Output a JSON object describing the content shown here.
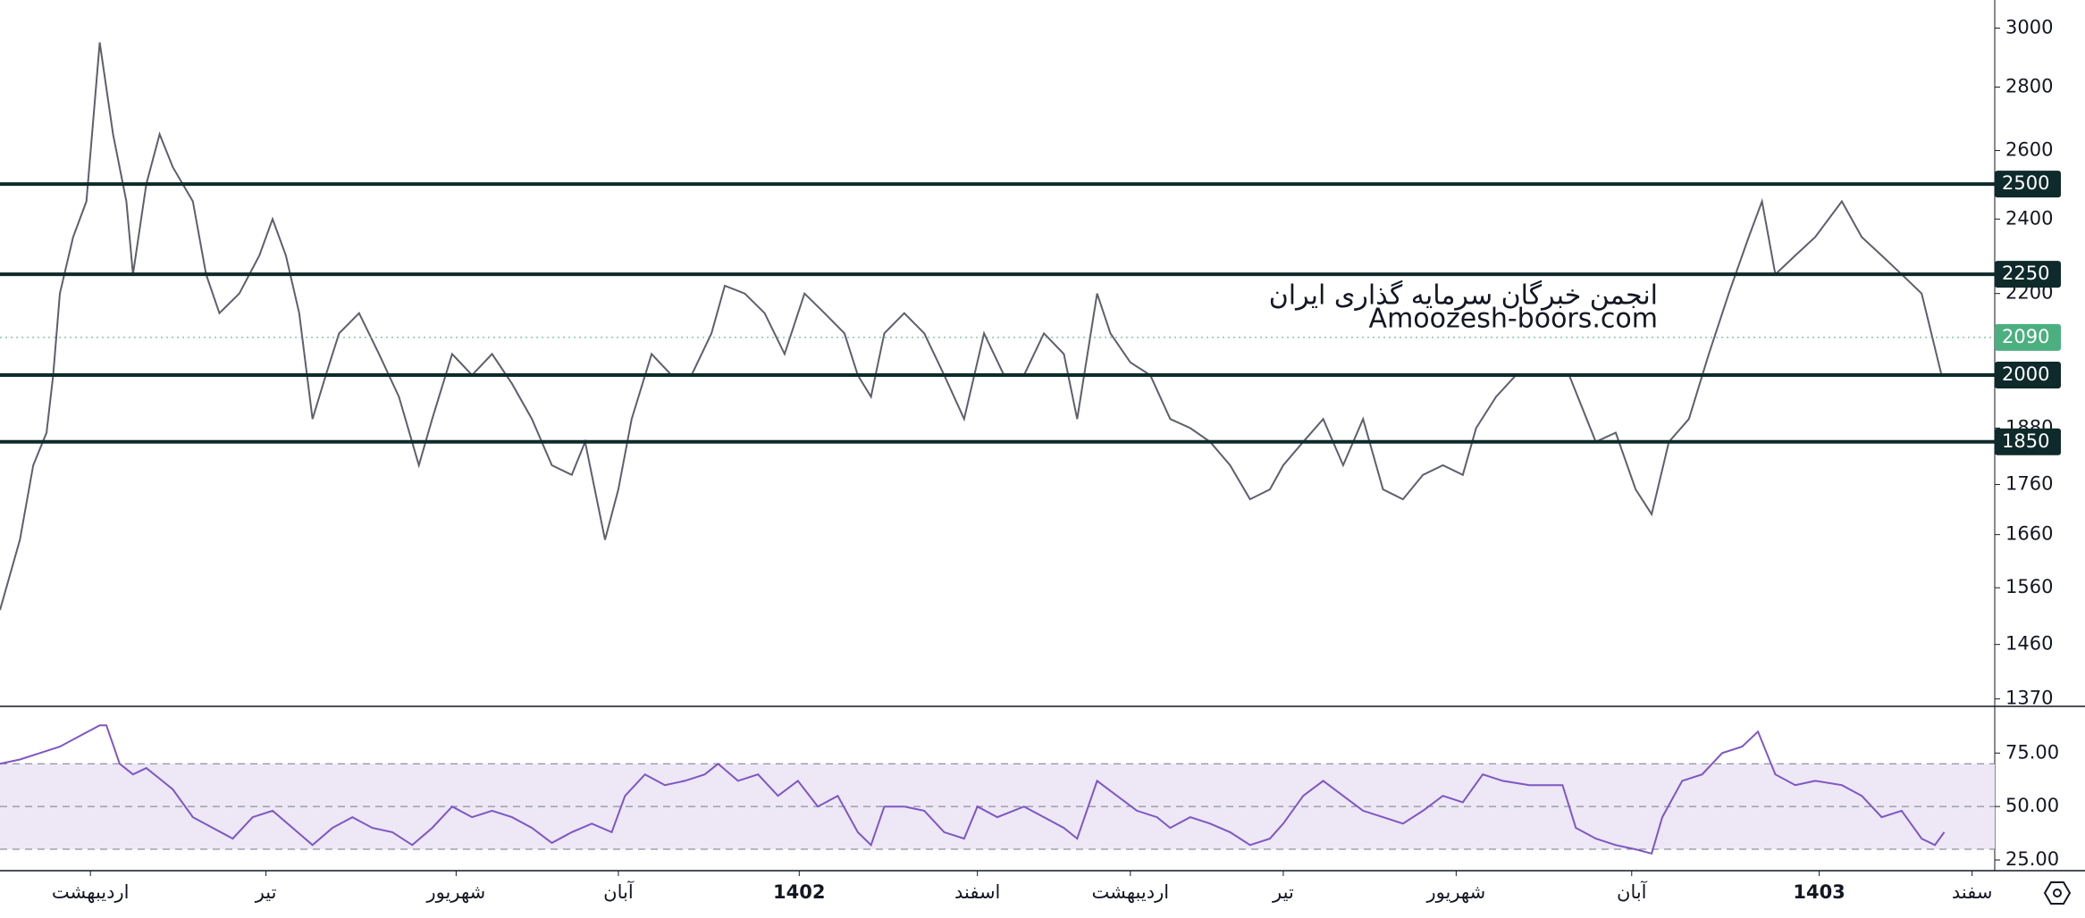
{
  "chart_data": [
    {
      "type": "line",
      "log_scale": true,
      "color": "#5d606b",
      "xlim": [
        0,
        150
      ],
      "ylim": [
        1361,
        3100
      ],
      "yticks": [
        1370,
        1460,
        1560,
        1660,
        1760,
        1880,
        2000,
        2200,
        2400,
        2600,
        2800,
        3000
      ],
      "xticks": [
        {
          "value": 6.8,
          "label": "اردیبهشت"
        },
        {
          "value": 20,
          "label": "تیر"
        },
        {
          "value": 34.3,
          "label": "شهریور"
        },
        {
          "value": 46.5,
          "label": "آبان"
        },
        {
          "value": 60.1,
          "label": "1402"
        },
        {
          "value": 73.5,
          "label": "اسفند"
        },
        {
          "value": 85,
          "label": "اردیبهشت"
        },
        {
          "value": 96.5,
          "label": "تیر"
        },
        {
          "value": 109.5,
          "label": "شهریور"
        },
        {
          "value": 122.7,
          "label": "آبان"
        },
        {
          "value": 136.8,
          "label": "1403"
        },
        {
          "value": 148.3,
          "label": "سفند"
        }
      ],
      "levels": [
        2500,
        2250,
        2000,
        1850
      ],
      "level_color": "#0f2a2a",
      "last_price": 2090,
      "last_price_color": "#4caf80",
      "annotations": [
        "انجمن خبرگان سرمایه گذاری ایران",
        "Amoozesh-boors.com"
      ],
      "x": [
        0,
        1.5,
        2.5,
        3.5,
        4,
        4.5,
        5.5,
        6.5,
        7.5,
        8.5,
        9.5,
        10,
        11,
        12,
        13,
        14.5,
        15.5,
        16.5,
        18,
        19.5,
        20.5,
        21.5,
        22.5,
        23.5,
        24.5,
        25.5,
        27,
        28.5,
        30,
        31.5,
        32.5,
        34,
        35.5,
        37,
        38.5,
        40,
        41.5,
        43,
        44,
        45.5,
        46.5,
        47.5,
        49,
        50.5,
        52,
        53.5,
        54.5,
        56,
        57.5,
        59,
        60.5,
        62,
        63.5,
        64.5,
        65.5,
        66.5,
        68,
        69.5,
        71,
        72.5,
        74,
        75.5,
        77,
        78.5,
        80,
        81,
        82.5,
        83.5,
        85,
        86.5,
        88,
        89.5,
        91,
        92.5,
        94,
        95.5,
        96.5,
        98,
        99.5,
        101,
        102.5,
        104,
        105.5,
        107,
        108.5,
        110,
        111,
        112.5,
        114,
        116,
        118,
        120,
        121.5,
        123,
        124.2,
        125.5,
        127,
        128.5,
        130,
        131.5,
        132.5,
        133.5,
        135,
        136.5,
        138.5,
        140,
        141.5,
        143,
        144.5,
        146
      ],
      "values": [
        1520,
        1650,
        1800,
        1870,
        2000,
        2200,
        2350,
        2450,
        2950,
        2650,
        2450,
        2250,
        2500,
        2650,
        2550,
        2450,
        2250,
        2150,
        2200,
        2300,
        2400,
        2300,
        2150,
        1900,
        2000,
        2100,
        2150,
        2050,
        1950,
        1800,
        1900,
        2050,
        2000,
        2050,
        1980,
        1900,
        1800,
        1780,
        1850,
        1650,
        1750,
        1900,
        2050,
        2000,
        2000,
        2100,
        2220,
        2200,
        2150,
        2050,
        2200,
        2150,
        2100,
        2000,
        1950,
        2100,
        2150,
        2100,
        2000,
        1900,
        2100,
        2000,
        2000,
        2100,
        2050,
        1900,
        2200,
        2100,
        2030,
        2000,
        1900,
        1880,
        1850,
        1800,
        1730,
        1750,
        1800,
        1850,
        1900,
        1800,
        1900,
        1750,
        1730,
        1780,
        1800,
        1780,
        1880,
        1950,
        2000,
        2000,
        2000,
        1850,
        1870,
        1750,
        1700,
        1850,
        1900,
        2050,
        2200,
        2350,
        2450,
        2250,
        2300,
        2350,
        2450,
        2350,
        2300,
        2250,
        2200,
        2000
      ]
    },
    {
      "type": "line",
      "color": "#7e57c2",
      "band_color": "#ede7f6",
      "xlim": [
        0,
        150
      ],
      "ylim": [
        20,
        96
      ],
      "yticks": [
        {
          "value": 25,
          "label": "25.00"
        },
        {
          "value": 50,
          "label": "50.00"
        },
        {
          "value": 75,
          "label": "75.00"
        }
      ],
      "bands": [
        30,
        50,
        70
      ],
      "x": [
        0,
        1.5,
        3,
        4.5,
        6,
        7.5,
        8,
        9,
        10,
        11,
        12,
        13,
        14.5,
        16,
        17.5,
        19,
        20.5,
        22,
        23.5,
        25,
        26.5,
        28,
        29.5,
        31,
        32.5,
        34,
        35.5,
        37,
        38.5,
        40,
        41.5,
        43,
        44.5,
        46,
        47,
        48.5,
        50,
        51.5,
        53,
        54,
        55.5,
        57,
        58.5,
        60,
        61.5,
        63,
        64.5,
        65.5,
        66.5,
        68,
        69.5,
        71,
        72.5,
        73.5,
        75,
        77,
        78.5,
        80,
        81,
        82.5,
        84,
        85.5,
        87,
        88,
        89.5,
        91,
        92.5,
        94,
        95.5,
        96.5,
        98,
        99.5,
        101,
        102.5,
        104,
        105.5,
        107,
        108.5,
        110,
        111.5,
        113,
        115,
        117.5,
        118.5,
        120,
        121.5,
        123,
        124.2,
        125,
        126.5,
        128,
        129.5,
        131,
        132.2,
        133.5,
        135,
        136.5,
        138.5,
        140,
        141.5,
        143,
        144.5,
        145.5,
        146.2
      ],
      "values": [
        70,
        72,
        75,
        78,
        83,
        88,
        88,
        70,
        65,
        68,
        63,
        58,
        45,
        40,
        35,
        45,
        48,
        40,
        32,
        40,
        45,
        40,
        38,
        32,
        40,
        50,
        45,
        48,
        45,
        40,
        33,
        38,
        42,
        38,
        55,
        65,
        60,
        62,
        65,
        70,
        62,
        65,
        55,
        62,
        50,
        55,
        38,
        32,
        50,
        50,
        48,
        38,
        35,
        50,
        45,
        50,
        45,
        40,
        35,
        62,
        55,
        48,
        45,
        40,
        45,
        42,
        38,
        32,
        35,
        42,
        55,
        62,
        55,
        48,
        45,
        42,
        48,
        55,
        52,
        65,
        62,
        60,
        60,
        40,
        35,
        32,
        30,
        28,
        45,
        62,
        65,
        75,
        78,
        85,
        65,
        60,
        62,
        60,
        55,
        45,
        48,
        35,
        32,
        38
      ]
    }
  ]
}
